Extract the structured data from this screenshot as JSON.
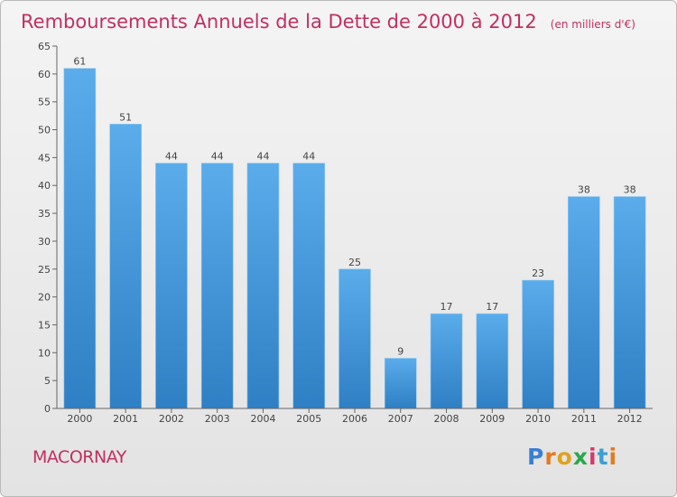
{
  "chart_data": {
    "type": "bar",
    "title": "Remboursements Annuels de la Dette de 2000 à 2012",
    "subtitle": "(en milliers d'€)",
    "categories": [
      "2000",
      "2001",
      "2002",
      "2003",
      "2004",
      "2005",
      "2006",
      "2007",
      "2008",
      "2009",
      "2010",
      "2011",
      "2012"
    ],
    "values": [
      61,
      51,
      44,
      44,
      44,
      44,
      25,
      9,
      17,
      17,
      23,
      38,
      38
    ],
    "xlabel": "",
    "ylabel": "",
    "ylim": [
      0,
      65
    ],
    "yticks": [
      0,
      5,
      10,
      15,
      20,
      25,
      30,
      35,
      40,
      45,
      50,
      55,
      60,
      65
    ],
    "grid": false,
    "bar_color": "#4a9fe0"
  },
  "commune": "MACORNAY",
  "logo": {
    "letters": [
      "P",
      "r",
      "o",
      "x",
      "i",
      "t",
      "i"
    ],
    "colors": [
      "#3a7fd5",
      "#e57a1e",
      "#e0a21c",
      "#2aa84a",
      "#d63a6a",
      "#3a9fd5",
      "#e57a1e"
    ]
  }
}
